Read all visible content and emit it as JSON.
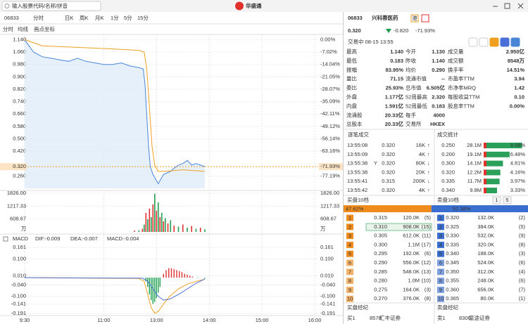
{
  "topbar": {
    "search": "输入股票代码/名称/拼音",
    "logo": "华盛通"
  },
  "toolbar": {
    "code": "06833",
    "tabs": [
      "分时",
      "日K",
      "周K",
      "月K",
      "1分",
      "5分",
      "15分"
    ],
    "subtabs": [
      "分时",
      "均线",
      "画点坐标"
    ]
  },
  "chart": {
    "type": "line",
    "xlim": [
      0,
      330
    ],
    "xticks": [
      {
        "value": 0,
        "label": "9:30"
      },
      {
        "value": 90,
        "label": "11:00"
      },
      {
        "value": 150,
        "label": "13:00"
      },
      {
        "value": 210,
        "label": "14:00"
      },
      {
        "value": 270,
        "label": "15:00"
      },
      {
        "value": 330,
        "label": "16:00"
      }
    ],
    "ylim": [
      0.18,
      1.16
    ],
    "yticks": [
      {
        "value": 1.14,
        "label": "1.140"
      },
      {
        "value": 1.06,
        "label": "1.060"
      },
      {
        "value": 0.98,
        "label": "0.980"
      },
      {
        "value": 0.9,
        "label": "0.900"
      },
      {
        "value": 0.82,
        "label": "0.820"
      },
      {
        "value": 0.74,
        "label": "0.740"
      },
      {
        "value": 0.66,
        "label": "0.660"
      },
      {
        "value": 0.58,
        "label": "0.580"
      },
      {
        "value": 0.5,
        "label": "0.500"
      },
      {
        "value": 0.42,
        "label": "0.420"
      },
      {
        "value": 0.26,
        "label": "0.260"
      }
    ],
    "y2lim": [
      -84.21,
      1.75
    ],
    "y2ticks": [
      {
        "value": 0,
        "label": "0.00%"
      },
      {
        "value": -7.02,
        "label": "-7.02%"
      },
      {
        "value": -14.04,
        "label": "-14.04%"
      },
      {
        "value": -21.05,
        "label": "-21.05%"
      },
      {
        "value": -28.07,
        "label": "-28.07%"
      },
      {
        "value": -35.09,
        "label": "-35.09%"
      },
      {
        "value": -42.11,
        "label": "-42.11%"
      },
      {
        "value": -49.12,
        "label": "-49.12%"
      },
      {
        "value": -56.14,
        "label": "-56.14%"
      },
      {
        "value": -63.16,
        "label": "-63.16%"
      },
      {
        "value": -77.19,
        "label": "-77.19%"
      }
    ],
    "series": [
      {
        "color": "#4a86d8",
        "x": [
          0,
          5,
          10,
          20,
          30,
          40,
          50,
          60,
          70,
          80,
          90,
          100,
          110,
          120,
          130,
          135,
          137,
          139,
          141,
          143,
          146,
          149,
          152,
          155,
          158,
          162,
          166,
          170,
          175,
          180,
          185,
          190,
          195,
          200,
          205
        ],
        "values": [
          1.14,
          1.1,
          1.06,
          1.03,
          1.02,
          1.01,
          1.0,
          1.02,
          1.0,
          0.99,
          0.98,
          0.98,
          0.99,
          0.97,
          0.96,
          0.95,
          0.85,
          0.65,
          0.45,
          0.32,
          0.27,
          0.24,
          0.21,
          0.24,
          0.27,
          0.28,
          0.29,
          0.31,
          0.33,
          0.34,
          0.36,
          0.33,
          0.34,
          0.33,
          0.32
        ]
      },
      {
        "color": "#f0a020",
        "x": [
          0,
          20,
          60,
          100,
          130,
          136,
          139,
          142,
          145,
          148,
          152,
          160,
          180,
          205
        ],
        "values": [
          1.14,
          1.1,
          1.09,
          1.08,
          1.07,
          1.06,
          0.95,
          0.7,
          0.45,
          0.33,
          0.29,
          0.29,
          0.3,
          0.29
        ]
      }
    ],
    "last": {
      "value": 0.32,
      "label": "0.320",
      "pct": -71.93,
      "pct_label": "-71.93%"
    },
    "volume": {
      "type": "bar",
      "ylim": [
        0,
        1826
      ],
      "yticks": [
        {
          "value": 1826,
          "label": "1826.00"
        },
        {
          "value": 1217.33,
          "label": "1217.33"
        },
        {
          "value": 608.67,
          "label": "608.67"
        }
      ],
      "unit": "万",
      "x": [
        125,
        130,
        134,
        136,
        138,
        140,
        142,
        144,
        146,
        148,
        150,
        152,
        154,
        156,
        158,
        160,
        163,
        166,
        170,
        175,
        180,
        185,
        190,
        195,
        200,
        205
      ],
      "values": [
        60,
        80,
        150,
        350,
        900,
        600,
        1100,
        700,
        1300,
        1800,
        1000,
        1400,
        700,
        900,
        500,
        650,
        400,
        550,
        300,
        250,
        350,
        200,
        280,
        150,
        200,
        120
      ],
      "colors": [
        "#e03030",
        "#20a050",
        "#e03030",
        "#20a050",
        "#e03030",
        "#20a050",
        "#e03030",
        "#20a050",
        "#e03030",
        "#20a050",
        "#e03030",
        "#20a050",
        "#e03030",
        "#20a050",
        "#e03030",
        "#20a050",
        "#e03030",
        "#20a050",
        "#e03030",
        "#20a050",
        "#e03030",
        "#20a050",
        "#e03030",
        "#20a050",
        "#e03030",
        "#20a050"
      ]
    },
    "macd": {
      "title": "MACD",
      "legend": [
        "DIF:-0.009",
        "DEA:-0.007",
        "MACD:-0.004"
      ],
      "legend_colors": [
        "#f0a020",
        "#4a6fd6",
        "#d040c0"
      ],
      "ylim": [
        -0.191,
        0.161
      ],
      "yticks": [
        0.161,
        {
          "value": 0.1,
          "label": "0.100"
        },
        {
          "value": 0.01,
          "label": "0.010"
        },
        {
          "value": -0.04,
          "label": "-0.040"
        },
        {
          "value": -0.1,
          "label": "-0.100"
        },
        -0.141,
        -0.191
      ],
      "series": [
        {
          "color": "#f0a020",
          "x": [
            0,
            130,
            136,
            140,
            144,
            148,
            152,
            158,
            165,
            175,
            185,
            195,
            205
          ],
          "values": [
            0,
            -0.005,
            -0.02,
            -0.09,
            -0.16,
            -0.19,
            -0.18,
            -0.14,
            -0.1,
            -0.06,
            -0.035,
            -0.02,
            -0.009
          ]
        },
        {
          "color": "#4a6fd6",
          "x": [
            0,
            134,
            140,
            146,
            152,
            158,
            165,
            175,
            185,
            195,
            205
          ],
          "values": [
            0,
            -0.003,
            -0.02,
            -0.06,
            -0.1,
            -0.12,
            -0.115,
            -0.09,
            -0.06,
            -0.03,
            -0.007
          ]
        }
      ],
      "hist": {
        "up_color": "#e03030",
        "down_color": "#20a050",
        "x": [
          138,
          140,
          142,
          144,
          146,
          148,
          150,
          152,
          154,
          158,
          161,
          164,
          167,
          170,
          173,
          176,
          179,
          182,
          185,
          188,
          191,
          197,
          205
        ],
        "values": [
          -0.02,
          -0.05,
          -0.09,
          -0.12,
          -0.14,
          -0.13,
          -0.11,
          -0.08,
          -0.05,
          0.02,
          0.04,
          0.05,
          0.05,
          0.045,
          0.04,
          0.035,
          0.03,
          0.02,
          0.015,
          0.01,
          0.005,
          -0.002,
          -0.004
        ]
      }
    }
  },
  "quote": {
    "code": "06833",
    "name": "兴科蓉医药",
    "badge": "港",
    "price": "0.320",
    "change": "-0.820",
    "change_pct": "-71.93%",
    "status": "交易中 08-15 13:55"
  },
  "stats": [
    [
      "最高",
      "1.140",
      "今开",
      "1.130",
      "成交量",
      "2.950亿"
    ],
    [
      "最低",
      "0.183",
      "昨收",
      "1.140",
      "成交额",
      "8548万"
    ],
    [
      "振幅",
      "83.95%",
      "均价",
      "0.290",
      "换手率",
      "14.51%"
    ],
    [
      "量比",
      "71.15",
      "流通市值",
      "--",
      "市盈率TTM",
      "3.94"
    ],
    [
      "委比",
      "25.93%",
      "总市值",
      "6.505亿",
      "市净率MRQ",
      "1.42"
    ],
    [
      "外盘",
      "1.177亿",
      "52周最高",
      "2.320",
      "每股收益TTM",
      "0.10"
    ],
    [
      "内盘",
      "1.591亿",
      "52周最低",
      "0.183",
      "股息率TTM",
      "0.00%"
    ],
    [
      "流通股",
      "20.33亿",
      "每手",
      "4000"
    ],
    [
      "总股本",
      "20.33亿",
      "交易所",
      "HKEX"
    ]
  ],
  "trades": {
    "title": "逐笔成交",
    "rows": [
      {
        "time": "13:55:08",
        "price": "0.320",
        "volume": "16K",
        "dir": "↑"
      },
      {
        "time": "13:55:09",
        "price": "0.320",
        "volume": "4K",
        "dir": "↑"
      },
      {
        "time": "13:55:38",
        "flag": "Y",
        "price": "0.320",
        "volume": "80K",
        "dir": "↓"
      },
      {
        "time": "13:55:38",
        "price": "0.320",
        "volume": "20K",
        "dir": "↑"
      },
      {
        "time": "13:55:41",
        "price": "0.315",
        "volume": "200K",
        "dir": "↓"
      },
      {
        "time": "13:55:42",
        "price": "0.320",
        "volume": "4K",
        "dir": "↑"
      }
    ]
  },
  "trade_stats": {
    "title": "成交统计",
    "rows": [
      [
        "0.250",
        "28.1M"
      ],
      [
        "0.200",
        "19.1M"
      ],
      [
        "0.300",
        "14.1M"
      ],
      [
        "0.320",
        "12.2M"
      ],
      [
        "0.335",
        "11.7M"
      ],
      [
        "0.340",
        "9.8M"
      ]
    ],
    "values": [
      9.58,
      6.48,
      4.81,
      4.16,
      3.97,
      3.33
    ],
    "value_labels": [
      "9.58%",
      "6.48%",
      "4.81%",
      "4.16%",
      "3.97%",
      "3.33%"
    ]
  },
  "order_book": {
    "buy_title": "买盘10档",
    "sell_title": "卖盘10档",
    "levels": [
      "1",
      "5"
    ],
    "buy_ratio": 47.62,
    "buy_ratio_label": "47.62%",
    "sell_ratio": 52.38,
    "sell_ratio_label": "52.38%",
    "buy": [
      [
        "1",
        "0.315",
        "120.0K",
        "(5)"
      ],
      [
        "2",
        "0.310",
        "908.0K",
        "(15)"
      ],
      [
        "3",
        "0.305",
        "612.0K",
        "(11)"
      ],
      [
        "4",
        "0.300",
        "1.1M",
        "(17)"
      ],
      [
        "5",
        "0.295",
        "192.0K",
        "(6)"
      ],
      [
        "6",
        "0.290",
        "556.0K",
        "(12)"
      ],
      [
        "7",
        "0.285",
        "548.0K",
        "(13)"
      ],
      [
        "8",
        "0.280",
        "1.0M",
        "(10)"
      ],
      [
        "9",
        "0.275",
        "164.0K",
        "(3)"
      ],
      [
        "10",
        "0.270",
        "376.0K",
        "(8)"
      ]
    ],
    "sell": [
      [
        "1",
        "0.320",
        "132.0K",
        "(2)"
      ],
      [
        "2",
        "0.325",
        "384.0K",
        "(5)"
      ],
      [
        "3",
        "0.330",
        "532.0K",
        "(9)"
      ],
      [
        "4",
        "0.335",
        "320.0K",
        "(8)"
      ],
      [
        "5",
        "0.340",
        "188.0K",
        "(3)"
      ],
      [
        "6",
        "0.345",
        "524.0K",
        "(6)"
      ],
      [
        "7",
        "0.350",
        "312.0K",
        "(4)"
      ],
      [
        "8",
        "0.355",
        "248.0K",
        "(6)"
      ],
      [
        "9",
        "0.360",
        "656.0K",
        "(7)"
      ],
      [
        "10",
        "0.365",
        "80.0K",
        "(1)"
      ]
    ]
  },
  "brokers": {
    "buy_title": "买盘经纪",
    "sell_title": "卖盘经纪",
    "buy": [
      "买1",
      "8578",
      "汇丰证券"
    ],
    "sell": [
      "卖1",
      "8306",
      "富途证券"
    ]
  }
}
